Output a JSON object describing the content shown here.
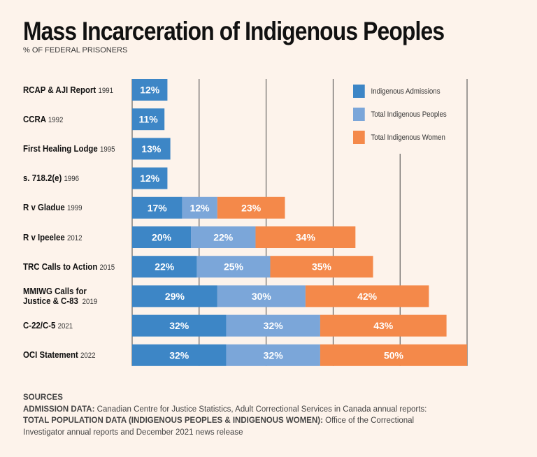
{
  "chart_data": {
    "type": "bar",
    "orientation": "horizontal",
    "stacked": true,
    "title": "Mass Incarceration of Indigenous Peoples",
    "subtitle": "% OF FEDERAL PRISONERS",
    "categories": [
      {
        "label": "RCAP & AJI Report",
        "year": "1991"
      },
      {
        "label": "CCRA",
        "year": "1992"
      },
      {
        "label": "First Healing Lodge",
        "year": "1995"
      },
      {
        "label": "s. 718.2(e)",
        "year": "1996"
      },
      {
        "label": "R v Gladue",
        "year": "1999"
      },
      {
        "label": "R v Ipeelee",
        "year": "2012"
      },
      {
        "label": "TRC Calls to Action",
        "year": "2015"
      },
      {
        "label": "MMIWG Calls for Justice & C-83",
        "year": "2019"
      },
      {
        "label": "C-22/C-5",
        "year": "2021"
      },
      {
        "label": "OCI Statement",
        "year": "2022"
      }
    ],
    "series": [
      {
        "name": "Indigenous Admissions",
        "color": "#3d86c6",
        "values": [
          12,
          11,
          13,
          12,
          17,
          20,
          22,
          29,
          32,
          32
        ]
      },
      {
        "name": "Total Indigenous Peoples",
        "color": "#7ba6d9",
        "values": [
          null,
          null,
          null,
          null,
          12,
          22,
          25,
          30,
          32,
          32
        ]
      },
      {
        "name": "Total Indigenous Women",
        "color": "#f4894a",
        "values": [
          null,
          null,
          null,
          null,
          23,
          34,
          35,
          42,
          43,
          50
        ]
      }
    ],
    "value_suffix": "%",
    "legend_position": "top-right",
    "grid": true
  },
  "sources": {
    "heading": "SOURCES",
    "admission_label": "ADMISSION DATA:",
    "admission_text": "Canadian Centre for Justice Statistics, Adult Correctional Services in Canada annual reports:",
    "population_label": "TOTAL POPULATION DATA (INDIGENOUS PEOPLES & INDIGENOUS WOMEN):",
    "population_text": "Office of the Correctional Investigator annual reports and December 2021 news release"
  }
}
